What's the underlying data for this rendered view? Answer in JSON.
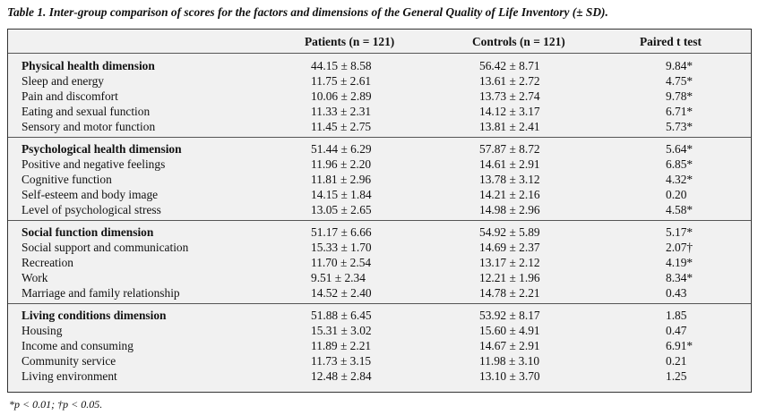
{
  "caption": "Table 1. Inter-group comparison of scores for the factors and dimensions of the General Quality of Life Inventory (± SD).",
  "columns": [
    "",
    "Patients (n = 121)",
    "Controls (n = 121)",
    "Paired t test"
  ],
  "groups": [
    {
      "rows": [
        {
          "label": "Physical health dimension",
          "patients": "44.15 ± 8.58",
          "controls": "56.42 ± 8.71",
          "t": "9.84*",
          "bold": true
        },
        {
          "label": "Sleep and energy",
          "patients": "11.75 ± 2.61",
          "controls": "13.61 ± 2.72",
          "t": "4.75*"
        },
        {
          "label": "Pain and discomfort",
          "patients": "10.06 ± 2.89",
          "controls": "13.73 ± 2.74",
          "t": "9.78*"
        },
        {
          "label": "Eating and sexual function",
          "patients": "11.33 ± 2.31",
          "controls": "14.12 ± 3.17",
          "t": "6.71*"
        },
        {
          "label": "Sensory and motor function",
          "patients": "11.45 ± 2.75",
          "controls": "13.81 ± 2.41",
          "t": "5.73*"
        }
      ]
    },
    {
      "rows": [
        {
          "label": "Psychological health dimension",
          "patients": "51.44 ± 6.29",
          "controls": "57.87 ± 8.72",
          "t": "5.64*",
          "bold": true
        },
        {
          "label": "Positive and negative feelings",
          "patients": "11.96 ± 2.20",
          "controls": "14.61 ± 2.91",
          "t": "6.85*"
        },
        {
          "label": "Cognitive function",
          "patients": "11.81 ± 2.96",
          "controls": "13.78 ± 3.12",
          "t": "4.32*"
        },
        {
          "label": "Self-esteem and body image",
          "patients": "14.15 ± 1.84",
          "controls": "14.21 ± 2.16",
          "t": "0.20"
        },
        {
          "label": "Level of psychological stress",
          "patients": "13.05 ± 2.65",
          "controls": "14.98 ± 2.96",
          "t": "4.58*"
        }
      ]
    },
    {
      "rows": [
        {
          "label": "Social function dimension",
          "patients": "51.17 ± 6.66",
          "controls": "54.92 ± 5.89",
          "t": "5.17*",
          "bold": true
        },
        {
          "label": "Social support and communication",
          "patients": "15.33 ± 1.70",
          "controls": "14.69 ± 2.37",
          "t": "2.07†"
        },
        {
          "label": "Recreation",
          "patients": "11.70 ± 2.54",
          "controls": "13.17 ± 2.12",
          "t": "4.19*"
        },
        {
          "label": "Work",
          "patients": "9.51 ± 2.34",
          "controls": "12.21 ± 1.96",
          "t": "8.34*"
        },
        {
          "label": "Marriage and family relationship",
          "patients": "14.52 ± 2.40",
          "controls": "14.78 ± 2.21",
          "t": "0.43"
        }
      ]
    },
    {
      "rows": [
        {
          "label": "Living conditions dimension",
          "patients": "51.88 ± 6.45",
          "controls": "53.92 ± 8.17",
          "t": "1.85",
          "bold": true
        },
        {
          "label": "Housing",
          "patients": "15.31 ± 3.02",
          "controls": "15.60 ± 4.91",
          "t": "0.47"
        },
        {
          "label": "Income and consuming",
          "patients": "11.89 ± 2.21",
          "controls": "14.67 ± 2.91",
          "t": "6.91*"
        },
        {
          "label": "Community service",
          "patients": "11.73 ± 3.15",
          "controls": "11.98 ± 3.10",
          "t": "0.21"
        },
        {
          "label": "Living environment",
          "patients": "12.48 ± 2.84",
          "controls": "13.10 ± 3.70",
          "t": "1.25"
        }
      ]
    }
  ],
  "footnote": "*p < 0.01; †p < 0.05."
}
